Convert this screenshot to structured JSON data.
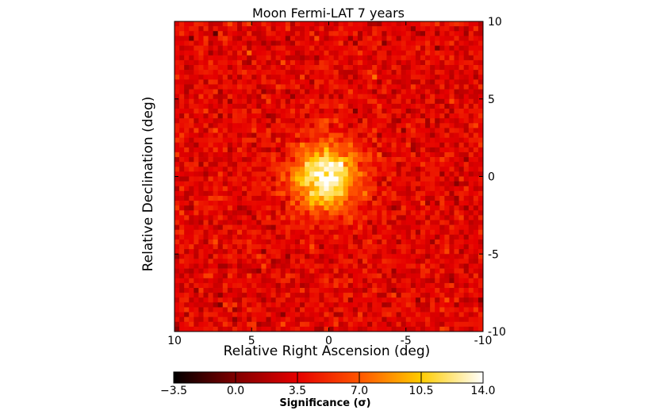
{
  "chart_data": {
    "type": "heatmap",
    "title": "Moon Fermi-LAT 7 years",
    "xlabel": "Relative Right Ascension (deg)",
    "ylabel": "Relative Declination (deg)",
    "xlim": [
      10,
      -10
    ],
    "ylim": [
      -10,
      10
    ],
    "x_ticks": [
      10,
      5,
      0,
      -5,
      -10
    ],
    "x_tick_labels": [
      "10",
      "5",
      "0",
      "-5",
      "-10"
    ],
    "y_ticks": [
      10,
      5,
      0,
      -5,
      -10
    ],
    "y_tick_labels": [
      "10",
      "5",
      "0",
      "-5",
      "-10"
    ],
    "y_axis_side": "right",
    "grid": false,
    "source": {
      "center_ra": 0.2,
      "center_dec": 0.0,
      "peak_significance": 14.0,
      "width_deg": 1.5
    },
    "background_significance": 3.5,
    "colorbar": {
      "label": "Significance (σ)",
      "orientation": "horizontal",
      "position": "bottom",
      "range": [
        -3.5,
        14.0
      ],
      "ticks": [
        -3.5,
        0.0,
        3.5,
        7.0,
        10.5,
        14.0
      ],
      "tick_labels": [
        "−3.5",
        "0.0",
        "3.5",
        "7.0",
        "10.5",
        "14.0"
      ],
      "colormap": "hot",
      "colors": [
        "#000000",
        "#800000",
        "#e60000",
        "#ff5500",
        "#ffcc00",
        "#ffffff"
      ]
    }
  }
}
